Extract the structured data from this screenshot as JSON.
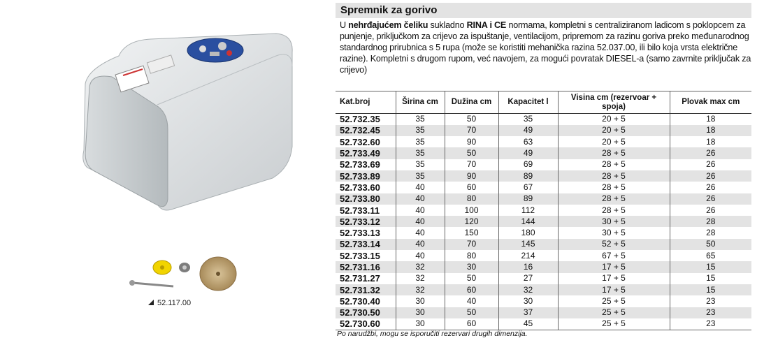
{
  "product": {
    "title": "Spremnik za gorivo",
    "description": {
      "p1": "U ",
      "b1": "nehrđajućem čeliku",
      "p2": " sukladno ",
      "b2": "RINA i CE",
      "p3": " normama, kompletni s centraliziranom ladicom s poklopcem za punjenje, priključkom za crijevo za ispuštanje, ventilacijom, pripremom za razinu goriva preko međunarodnog standardnog prirubnica s 5 rupa (može se koristiti mehanička razina 52.037.00, ili bilo koja vrsta električne razine). Kompletni s drugom rupom, već navojem, za mogući povratak DIESEL-a (samo zavrnite priključak za crijevo)"
    },
    "accessory_code": "52.117.00",
    "note": "Po narudžbi, mogu se isporučiti rezervari drugih dimenzija."
  },
  "table": {
    "headers": [
      "Kat.broj",
      "Širina cm",
      "Dužina cm",
      "Kapacitet l",
      "Visina cm (rezervoar + spoja)",
      "Plovak max cm"
    ],
    "rows": [
      [
        "52.732.35",
        "35",
        "50",
        "35",
        "20 + 5",
        "18"
      ],
      [
        "52.732.45",
        "35",
        "70",
        "49",
        "20 + 5",
        "18"
      ],
      [
        "52.732.60",
        "35",
        "90",
        "63",
        "20 + 5",
        "18"
      ],
      [
        "52.733.49",
        "35",
        "50",
        "49",
        "28 + 5",
        "26"
      ],
      [
        "52.733.69",
        "35",
        "70",
        "69",
        "28 + 5",
        "26"
      ],
      [
        "52.733.89",
        "35",
        "90",
        "89",
        "28 + 5",
        "26"
      ],
      [
        "52.733.60",
        "40",
        "60",
        "67",
        "28 + 5",
        "26"
      ],
      [
        "52.733.80",
        "40",
        "80",
        "89",
        "28 + 5",
        "26"
      ],
      [
        "52.733.11",
        "40",
        "100",
        "112",
        "28 + 5",
        "26"
      ],
      [
        "52.733.12",
        "40",
        "120",
        "144",
        "30 + 5",
        "28"
      ],
      [
        "52.733.13",
        "40",
        "150",
        "180",
        "30 + 5",
        "28"
      ],
      [
        "52.733.14",
        "40",
        "70",
        "145",
        "52 + 5",
        "50"
      ],
      [
        "52.733.15",
        "40",
        "80",
        "214",
        "67 + 5",
        "65"
      ],
      [
        "52.731.16",
        "32",
        "30",
        "16",
        "17 + 5",
        "15"
      ],
      [
        "52.731.27",
        "32",
        "50",
        "27",
        "17 + 5",
        "15"
      ],
      [
        "52.731.32",
        "32",
        "60",
        "32",
        "17 + 5",
        "15"
      ],
      [
        "52.730.40",
        "30",
        "40",
        "30",
        "25 + 5",
        "23"
      ],
      [
        "52.730.50",
        "30",
        "50",
        "37",
        "25 + 5",
        "23"
      ],
      [
        "52.730.60",
        "30",
        "60",
        "45",
        "25 + 5",
        "23"
      ]
    ]
  },
  "colors": {
    "band": "#e3e3e3",
    "flange": "#2a4fa0"
  }
}
